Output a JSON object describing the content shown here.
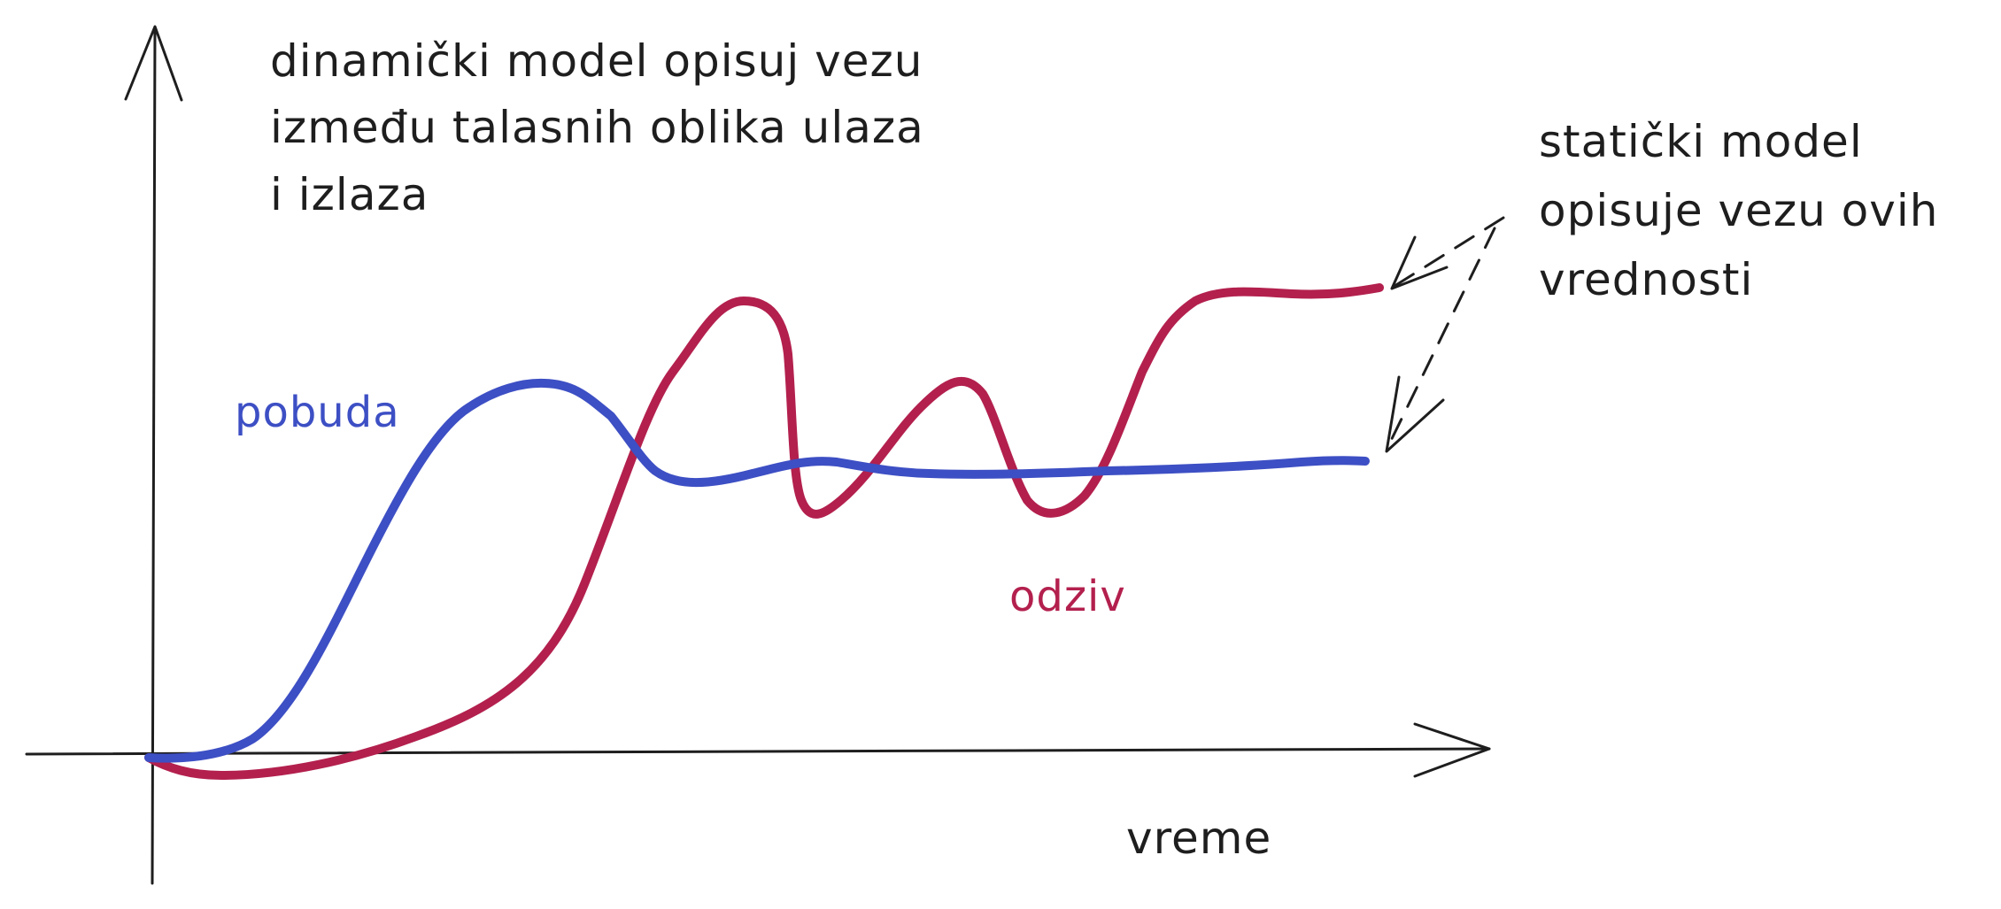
{
  "dynamic_note": {
    "lines": [
      "dinamički model opisuj vezu",
      "između talasnih oblika ulaza",
      "i izlaza"
    ]
  },
  "static_note": {
    "lines": [
      "statički model",
      "opisuje vezu ovih",
      "vrednosti"
    ]
  },
  "labels": {
    "input": "pobuda",
    "output": "odziv",
    "time_axis": "vreme"
  },
  "colors": {
    "input_curve": "#3d4fc4",
    "output_curve": "#b3204e",
    "ink": "#1e1e1e"
  }
}
